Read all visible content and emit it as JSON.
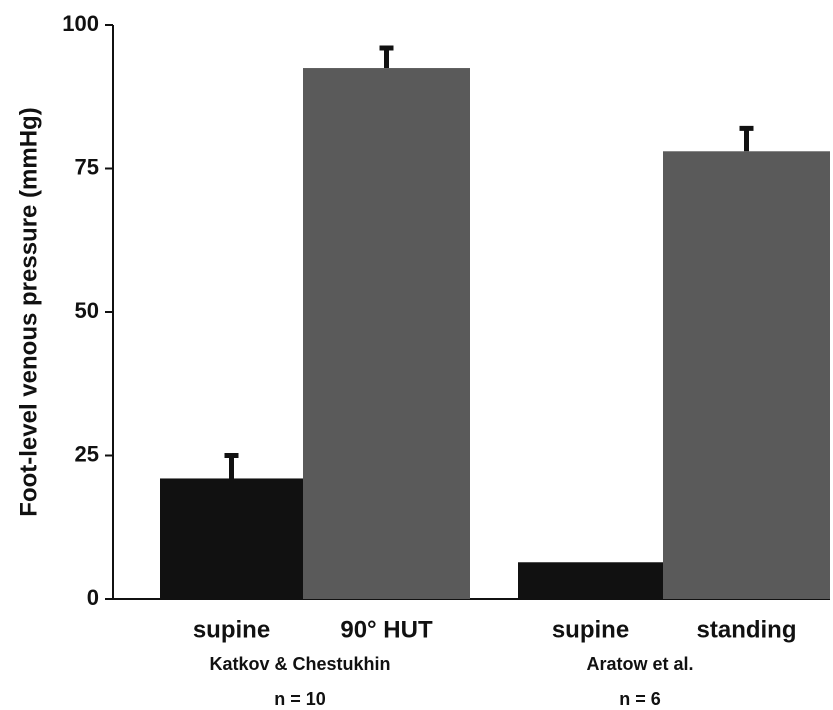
{
  "chart_data": {
    "type": "bar",
    "y_label": "Foot-level venous pressure (mmHg)",
    "categories": [
      "supine",
      "90° HUT",
      "supine",
      "standing"
    ],
    "values": [
      21,
      92.5,
      6.4,
      78
    ],
    "errors": [
      4,
      3.5,
      null,
      4
    ],
    "colors": [
      "#111111",
      "#5a5a5a",
      "#111111",
      "#5a5a5a"
    ],
    "groups": [
      {
        "name": "Katkov & Chestukhin",
        "n": "n = 10"
      },
      {
        "name": "Aratow et al.",
        "n": "n = 6"
      }
    ],
    "ylim": [
      0,
      100
    ],
    "yticks": [
      0,
      25,
      50,
      75,
      100
    ],
    "grid": false
  }
}
